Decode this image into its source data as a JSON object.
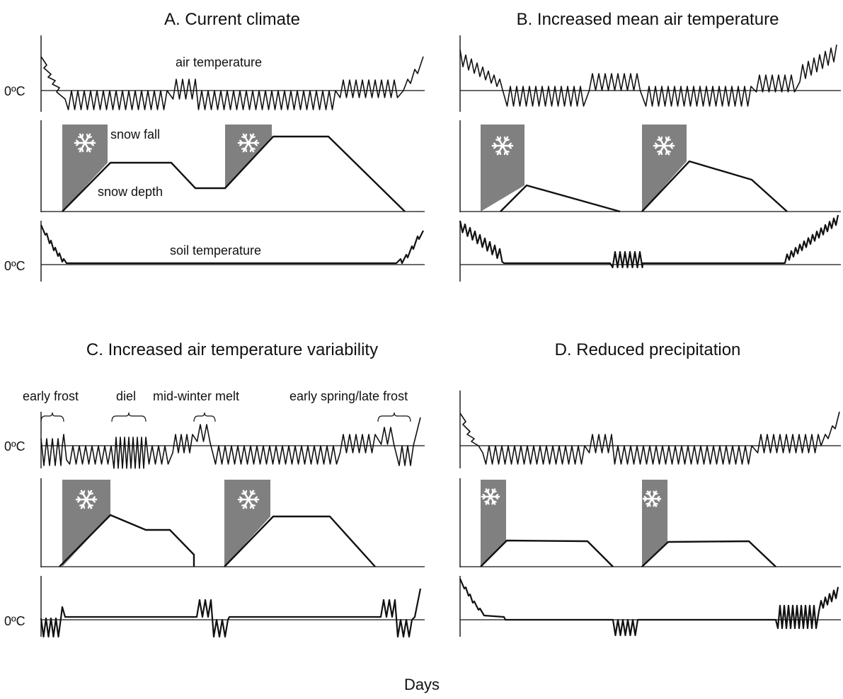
{
  "figure": {
    "xlabel": "Days",
    "zero_label": "0ºC",
    "snowflake_icon": "snowflake-icon",
    "colors": {
      "snowfall_bar": "#808080",
      "line": "#111111",
      "snowflake": "#ffffff"
    },
    "panels": [
      {
        "id": "A",
        "title": "A. Current climate",
        "labels": {
          "air": "air temperature",
          "snowfall": "snow fall",
          "snowdepth": "snow depth",
          "soil": "soil temperature"
        }
      },
      {
        "id": "B",
        "title": "B. Increased mean air temperature"
      },
      {
        "id": "C",
        "title": "C. Increased air temperature variability",
        "annotations": [
          "early frost",
          "diel",
          "mid-winter melt",
          "early spring/late frost"
        ]
      },
      {
        "id": "D",
        "title": "D. Reduced precipitation"
      }
    ]
  }
}
